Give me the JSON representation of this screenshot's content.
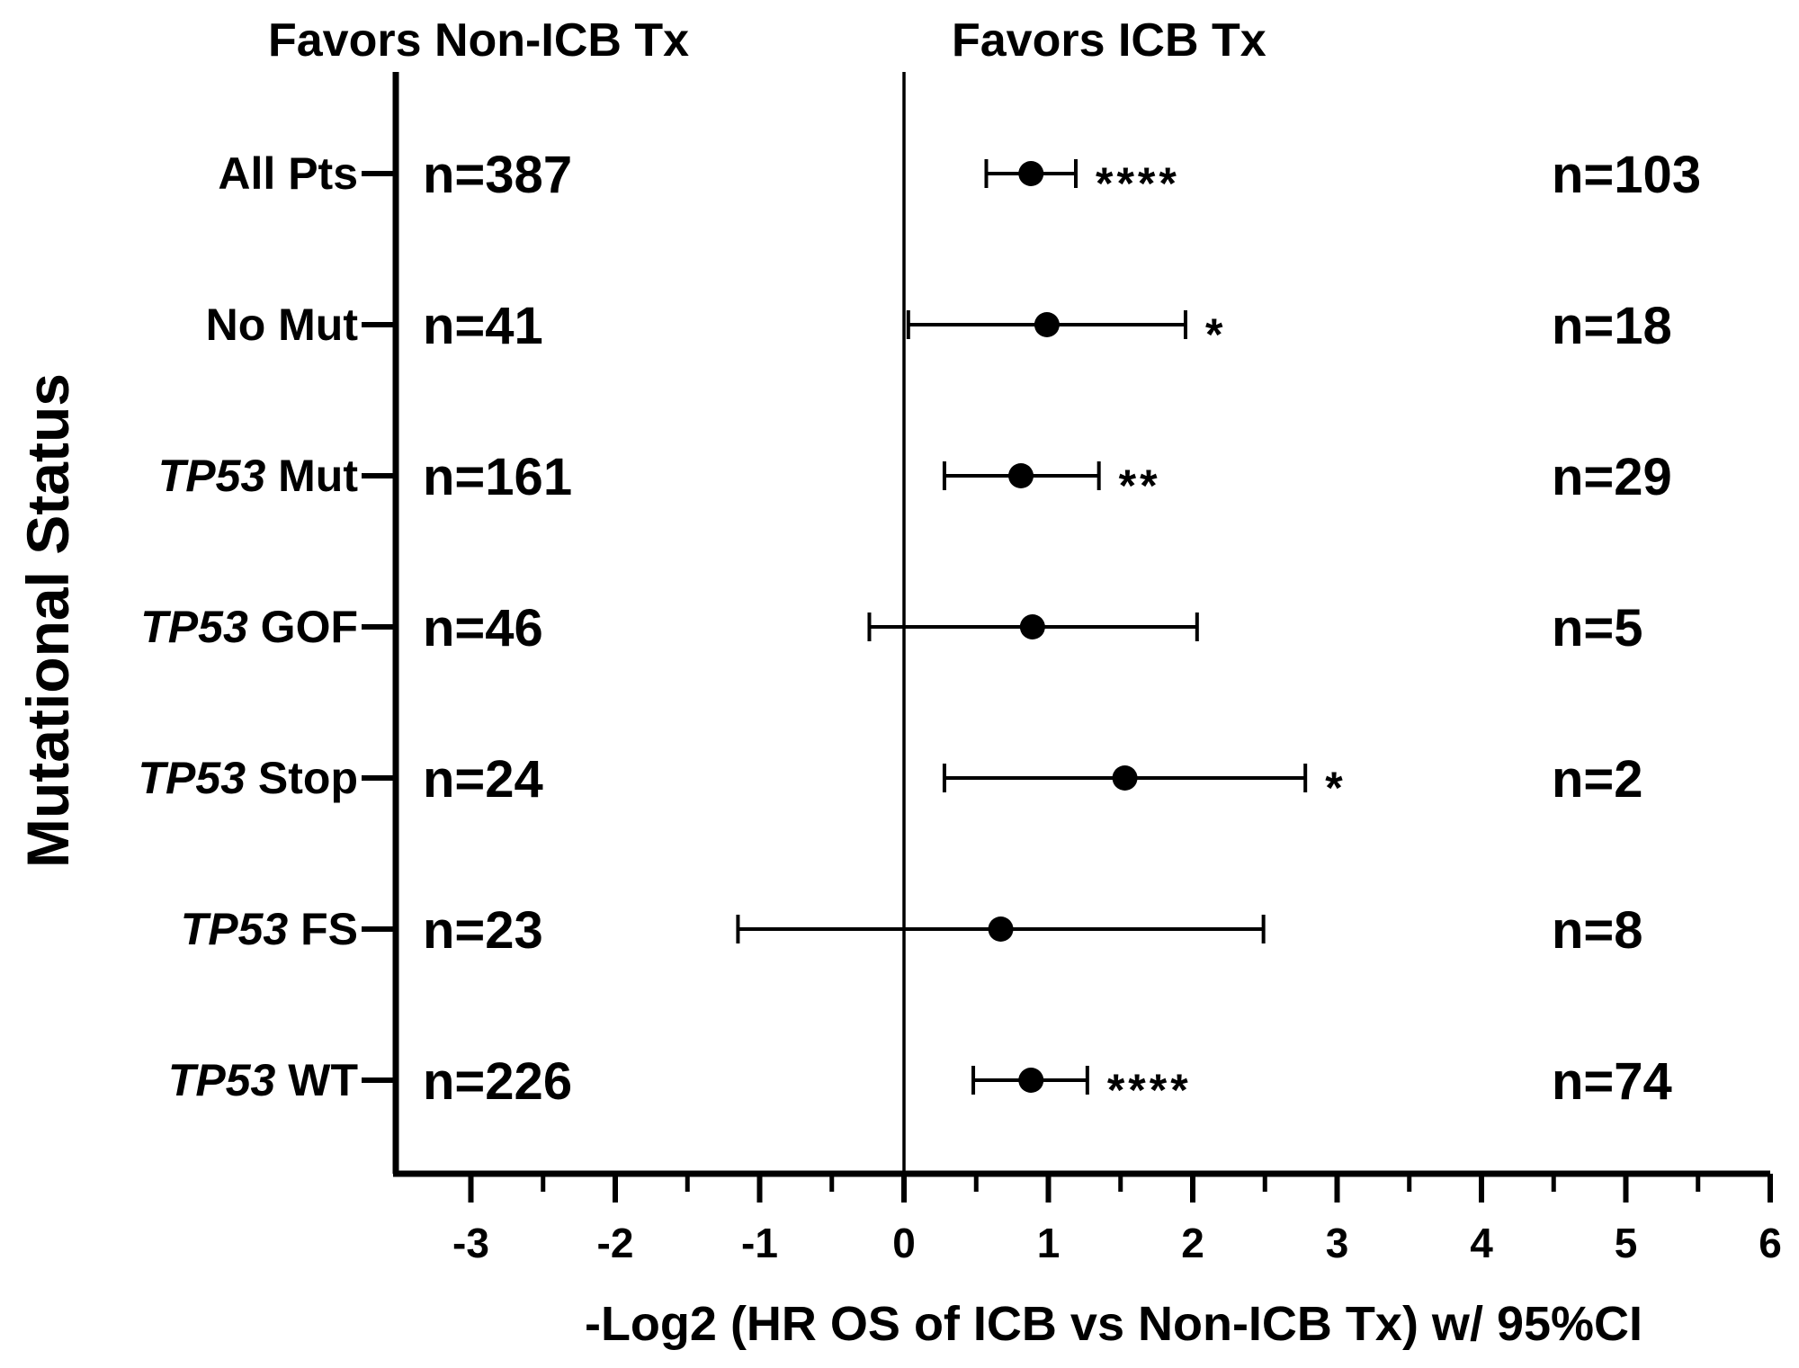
{
  "chart_data": {
    "type": "forest",
    "header_left": "Favors Non-ICB Tx",
    "header_right": "Favors ICB Tx",
    "xlabel": "-Log2 (HR OS of ICB vs Non-ICB Tx) w/ 95%CI",
    "ylabel": "Mutational Status",
    "xlim": [
      -3.5,
      6
    ],
    "xticks": [
      -3,
      -2,
      -1,
      0,
      1,
      2,
      3,
      4,
      5,
      6
    ],
    "xtick_labels": [
      "-3",
      "-2",
      "-1",
      "0",
      "1",
      "2",
      "3",
      "4",
      "5",
      "6"
    ],
    "rows": [
      {
        "prefix": "",
        "label": "All Pts",
        "n_left": "n=387",
        "estimate": 0.88,
        "ci": [
          0.57,
          1.19
        ],
        "sig": "****",
        "n_right": "n=103"
      },
      {
        "prefix": "",
        "label": "No Mut",
        "n_left": "n=41",
        "estimate": 0.99,
        "ci": [
          0.03,
          1.95
        ],
        "sig": "*",
        "n_right": "n=18"
      },
      {
        "prefix": "TP53",
        "label": "Mut",
        "n_left": "n=161",
        "estimate": 0.81,
        "ci": [
          0.28,
          1.35
        ],
        "sig": "**",
        "n_right": "n=29"
      },
      {
        "prefix": "TP53",
        "label": "GOF",
        "n_left": "n=46",
        "estimate": 0.89,
        "ci": [
          -0.24,
          2.03
        ],
        "sig": "",
        "n_right": "n=5"
      },
      {
        "prefix": "TP53",
        "label": "Stop",
        "n_left": "n=24",
        "estimate": 1.53,
        "ci": [
          0.28,
          2.78
        ],
        "sig": "*",
        "n_right": "n=2"
      },
      {
        "prefix": "TP53",
        "label": "FS",
        "n_left": "n=23",
        "estimate": 0.67,
        "ci": [
          -1.15,
          2.49
        ],
        "sig": "",
        "n_right": "n=8"
      },
      {
        "prefix": "TP53",
        "label": "WT",
        "n_left": "n=226",
        "estimate": 0.88,
        "ci": [
          0.48,
          1.27
        ],
        "sig": "****",
        "n_right": "n=74"
      }
    ]
  }
}
